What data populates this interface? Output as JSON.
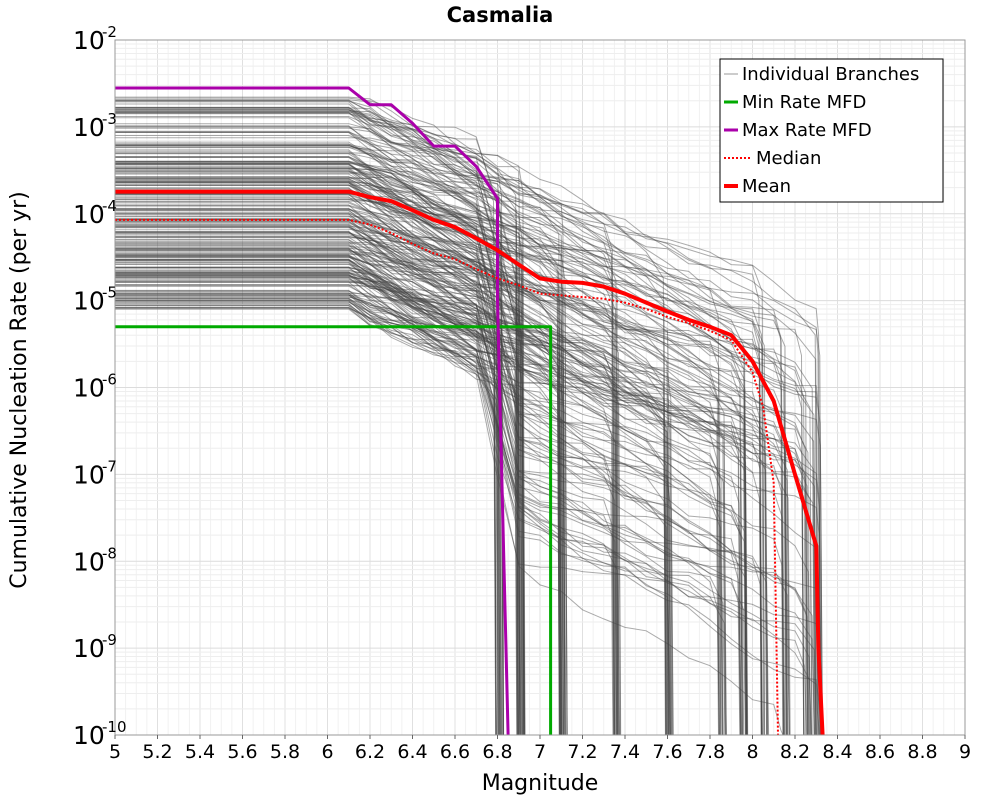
{
  "chart_data": {
    "type": "line",
    "title": "Casmalia",
    "xlabel": "Magnitude",
    "ylabel": "Cumulative Nucleation Rate (per yr)",
    "xlim": [
      5,
      9
    ],
    "ylim_exponents": [
      -10,
      -2
    ],
    "y_scale": "log",
    "grid": true,
    "legend_position": "top-right",
    "x_ticks": [
      "5",
      "5.2",
      "5.4",
      "5.6",
      "5.8",
      "6",
      "6.2",
      "6.4",
      "6.6",
      "6.8",
      "7",
      "7.2",
      "7.4",
      "7.6",
      "7.8",
      "8",
      "8.2",
      "8.4",
      "8.6",
      "8.8",
      "9"
    ],
    "y_ticks": [
      {
        "base": "10",
        "exp": "-2"
      },
      {
        "base": "10",
        "exp": "-3"
      },
      {
        "base": "10",
        "exp": "-4"
      },
      {
        "base": "10",
        "exp": "-5"
      },
      {
        "base": "10",
        "exp": "-6"
      },
      {
        "base": "10",
        "exp": "-7"
      },
      {
        "base": "10",
        "exp": "-8"
      },
      {
        "base": "10",
        "exp": "-9"
      },
      {
        "base": "10",
        "exp": "-10"
      }
    ],
    "series": [
      {
        "name": "Min Rate MFD",
        "color": "#00aa00",
        "style": "solid",
        "x": [
          5,
          7.0,
          7.05,
          7.05
        ],
        "y": [
          5e-06,
          5e-06,
          5e-06,
          1e-10
        ]
      },
      {
        "name": "Max Rate MFD",
        "color": "#aa00aa",
        "style": "solid",
        "x": [
          5,
          6.1,
          6.2,
          6.3,
          6.4,
          6.5,
          6.6,
          6.7,
          6.8,
          6.8,
          6.85
        ],
        "y": [
          0.0028,
          0.0028,
          0.0018,
          0.0018,
          0.0011,
          0.0006,
          0.0006,
          0.00035,
          0.00015,
          1e-05,
          1e-10
        ]
      },
      {
        "name": "Median",
        "color": "#ff0000",
        "style": "dotted",
        "x": [
          5,
          6.1,
          6.2,
          6.3,
          6.4,
          6.5,
          6.6,
          6.7,
          6.8,
          6.9,
          7.0,
          7.1,
          7.2,
          7.3,
          7.4,
          7.5,
          7.6,
          7.7,
          7.8,
          7.9,
          8.0,
          8.05,
          8.1,
          8.12
        ],
        "y": [
          8.5e-05,
          8.5e-05,
          7.5e-05,
          6e-05,
          4.5e-05,
          3.5e-05,
          3e-05,
          2.3e-05,
          1.8e-05,
          1.5e-05,
          1.2e-05,
          1.15e-05,
          1.1e-05,
          1.05e-05,
          9.5e-06,
          8e-06,
          6.5e-06,
          5.5e-06,
          4.5e-06,
          3.5e-06,
          1.5e-06,
          6e-07,
          8e-08,
          1e-10
        ]
      },
      {
        "name": "Mean",
        "color": "#ff0000",
        "style": "solid",
        "x": [
          5,
          6.1,
          6.2,
          6.3,
          6.4,
          6.5,
          6.6,
          6.7,
          6.8,
          6.9,
          7.0,
          7.1,
          7.2,
          7.3,
          7.4,
          7.5,
          7.6,
          7.7,
          7.8,
          7.9,
          8.0,
          8.1,
          8.2,
          8.3,
          8.31,
          8.33
        ],
        "y": [
          0.00018,
          0.00018,
          0.000155,
          0.00014,
          0.00011,
          8.5e-05,
          7e-05,
          5.2e-05,
          3.8e-05,
          2.6e-05,
          1.8e-05,
          1.65e-05,
          1.6e-05,
          1.45e-05,
          1.2e-05,
          9.5e-06,
          7.5e-06,
          6e-06,
          5e-06,
          4e-06,
          2e-06,
          7e-07,
          1e-07,
          1.5e-08,
          1e-09,
          1e-10
        ]
      }
    ],
    "individual_branches": {
      "name": "Individual Branches",
      "color": "#444444",
      "drop_magnitudes": [
        6.8,
        6.9,
        7.1,
        7.35,
        7.6,
        7.85,
        7.95,
        8.05,
        8.15,
        8.25,
        8.3
      ]
    }
  }
}
